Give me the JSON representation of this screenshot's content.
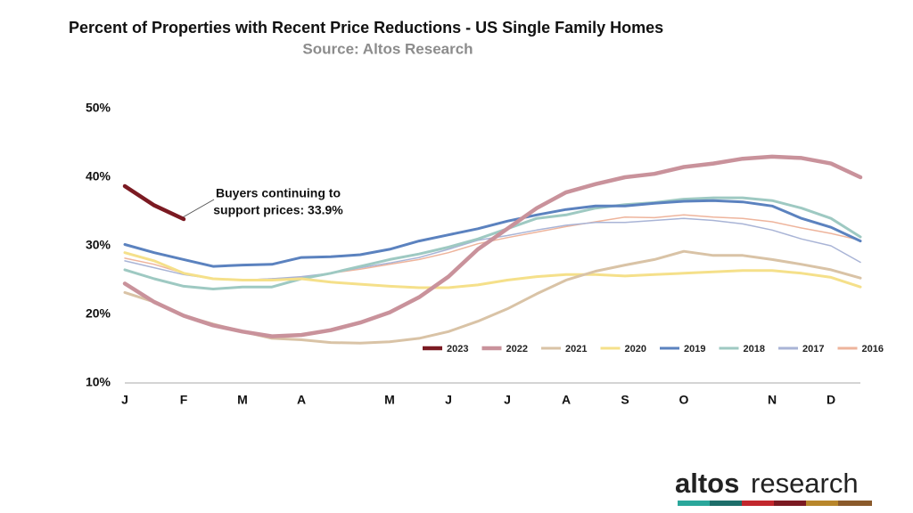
{
  "chart_data": {
    "type": "line",
    "title": "Percent of Properties with Recent Price Reductions - US Single Family Homes",
    "subtitle": "Source: Altos Research",
    "annotation": [
      "Buyers continuing to",
      "support prices: 33.9%"
    ],
    "logo": [
      "altos",
      "research"
    ],
    "categories": [
      "J",
      null,
      "F",
      null,
      "M",
      null,
      "A",
      null,
      null,
      "M",
      null,
      "J",
      null,
      "J",
      null,
      "A",
      null,
      "S",
      null,
      "O",
      null,
      null,
      "N",
      null,
      "D",
      null
    ],
    "ylim": [
      10,
      50
    ],
    "yticks": [
      {
        "value": 10,
        "label": "10%"
      },
      {
        "value": 20,
        "label": "20%"
      },
      {
        "value": 30,
        "label": "30%"
      },
      {
        "value": 40,
        "label": "40%"
      },
      {
        "value": 50,
        "label": "50%"
      }
    ],
    "grid": false,
    "legend": "lower right",
    "series": [
      {
        "name": "2023",
        "color": "#7b1a22",
        "line_width": 4.5,
        "values": [
          38.7,
          35.9,
          33.9,
          null,
          null,
          null,
          null,
          null,
          null,
          null,
          null,
          null,
          null,
          null,
          null,
          null,
          null,
          null,
          null,
          null,
          null,
          null,
          null,
          null,
          null,
          null
        ]
      },
      {
        "name": "2022",
        "color": "#c9929b",
        "line_width": 4.5,
        "values": [
          24.5,
          21.8,
          19.8,
          18.4,
          17.5,
          16.8,
          17.0,
          17.7,
          18.8,
          20.3,
          22.5,
          25.5,
          29.5,
          32.5,
          35.5,
          37.8,
          39.0,
          40.0,
          40.5,
          41.5,
          42.0,
          42.7,
          43.0,
          42.8,
          42.0,
          40.0
        ]
      },
      {
        "name": "2021",
        "color": "#d9c3a6",
        "line_width": 3,
        "values": [
          23.2,
          21.8,
          19.8,
          18.6,
          17.5,
          16.5,
          16.3,
          15.9,
          15.8,
          16.0,
          16.5,
          17.5,
          19.0,
          20.8,
          23.0,
          25.0,
          26.3,
          27.2,
          28.0,
          29.2,
          28.6,
          28.6,
          28.0,
          27.3,
          26.5,
          25.3
        ]
      },
      {
        "name": "2020",
        "color": "#f5e08a",
        "line_width": 3,
        "values": [
          29.0,
          27.8,
          26.0,
          25.2,
          25.0,
          25.0,
          25.2,
          24.7,
          24.4,
          24.1,
          23.9,
          23.9,
          24.3,
          25.0,
          25.5,
          25.8,
          25.8,
          25.6,
          25.8,
          26.0,
          26.2,
          26.4,
          26.4,
          26.0,
          25.4,
          24.0
        ]
      },
      {
        "name": "2019",
        "color": "#5b82bf",
        "line_width": 3,
        "values": [
          30.2,
          29.0,
          28.0,
          27.0,
          27.2,
          27.3,
          28.3,
          28.4,
          28.7,
          29.5,
          30.7,
          31.6,
          32.5,
          33.6,
          34.5,
          35.3,
          35.8,
          35.8,
          36.2,
          36.5,
          36.6,
          36.4,
          35.8,
          34.0,
          32.7,
          30.7
        ]
      },
      {
        "name": "2018",
        "color": "#9ec9c2",
        "line_width": 3,
        "values": [
          26.5,
          25.2,
          24.1,
          23.7,
          24.0,
          24.0,
          25.2,
          26.0,
          27.0,
          28.0,
          28.8,
          29.8,
          31.0,
          32.5,
          34.0,
          34.5,
          35.5,
          36.0,
          36.3,
          36.8,
          37.0,
          37.0,
          36.6,
          35.5,
          34.0,
          31.3
        ]
      },
      {
        "name": "2017",
        "color": "#a9b4d6",
        "line_width": 1.5,
        "values": [
          27.8,
          26.8,
          25.8,
          25.2,
          25.0,
          25.2,
          25.5,
          26.0,
          26.8,
          27.5,
          28.3,
          29.5,
          30.8,
          31.5,
          32.3,
          33.0,
          33.4,
          33.4,
          33.7,
          34.0,
          33.7,
          33.2,
          32.3,
          31.0,
          30.0,
          27.6
        ]
      },
      {
        "name": "2016",
        "color": "#eeb49c",
        "line_width": 1.5,
        "values": [
          28.2,
          27.3,
          26.0,
          25.2,
          25.0,
          25.2,
          25.4,
          26.0,
          26.6,
          27.3,
          28.0,
          29.0,
          30.3,
          31.2,
          32.0,
          32.8,
          33.5,
          34.2,
          34.1,
          34.5,
          34.2,
          34.0,
          33.5,
          32.6,
          31.8,
          30.8
        ]
      }
    ]
  }
}
